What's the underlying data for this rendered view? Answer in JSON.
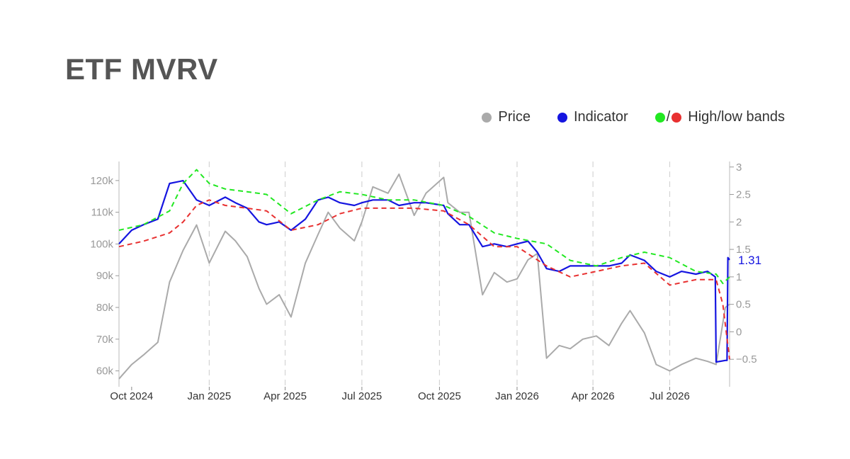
{
  "title": "ETF MVRV",
  "legend": {
    "price": {
      "label": "Price",
      "color": "#aaaaaa"
    },
    "indicator": {
      "label": "Indicator",
      "color": "#1515e0"
    },
    "bands": {
      "label": "High/low bands",
      "high_color": "#22e822",
      "low_color": "#e83030",
      "separator": "/"
    }
  },
  "chart_data": {
    "type": "line",
    "title": "ETF MVRV",
    "x_ticks": [
      "Oct 2024",
      "Jan 2025",
      "Apr 2025",
      "Jul 2025",
      "Oct 2025",
      "Jan 2026",
      "Apr 2026",
      "Jul 2026"
    ],
    "y_left": {
      "ticks": [
        "60k",
        "70k",
        "80k",
        "90k",
        "100k",
        "110k",
        "120k"
      ],
      "ylim": [
        55000,
        126000
      ]
    },
    "y_right": {
      "ticks": [
        "−0.5",
        "0",
        "0.5",
        "1",
        "1.5",
        "2",
        "2.5",
        "3"
      ],
      "ylim": [
        -1.0,
        3.1
      ]
    },
    "x_range": [
      "2024-09-16",
      "2026-09-10"
    ],
    "grid": {
      "vertical_dashed": true,
      "horizontal": false
    },
    "last_value_label": "1.31",
    "series": [
      {
        "name": "Price",
        "axis": "left",
        "color": "#aaaaaa",
        "style": "solid",
        "x": [
          "2024-09-16",
          "2024-10-01",
          "2024-10-15",
          "2024-11-01",
          "2024-11-15",
          "2024-12-01",
          "2024-12-17",
          "2025-01-01",
          "2025-01-20",
          "2025-02-01",
          "2025-02-15",
          "2025-03-01",
          "2025-03-10",
          "2025-03-25",
          "2025-04-08",
          "2025-04-25",
          "2025-05-10",
          "2025-05-22",
          "2025-06-05",
          "2025-06-22",
          "2025-07-01",
          "2025-07-14",
          "2025-08-01",
          "2025-08-14",
          "2025-09-01",
          "2025-09-15",
          "2025-10-06",
          "2025-10-11",
          "2025-10-25",
          "2025-11-05",
          "2025-11-21",
          "2025-12-05",
          "2025-12-20",
          "2026-01-01",
          "2026-01-14",
          "2026-01-25",
          "2026-02-05",
          "2026-02-20",
          "2026-03-05",
          "2026-03-20",
          "2026-04-05",
          "2026-04-20",
          "2026-05-05",
          "2026-05-15",
          "2026-06-01",
          "2026-06-15",
          "2026-07-01",
          "2026-07-15",
          "2026-08-01",
          "2026-08-15",
          "2026-08-25",
          "2026-09-05",
          "2026-09-10"
        ],
        "values": [
          57500,
          62000,
          65000,
          69000,
          88000,
          98000,
          106000,
          94000,
          104000,
          101000,
          96000,
          86000,
          81000,
          84000,
          77000,
          94000,
          103000,
          110000,
          105000,
          101000,
          107000,
          118000,
          116000,
          122000,
          109000,
          116000,
          121000,
          113000,
          110000,
          110000,
          84000,
          91000,
          88000,
          89000,
          95000,
          97000,
          64000,
          68000,
          67000,
          70000,
          71000,
          68000,
          75000,
          79000,
          72000,
          62000,
          60000,
          62000,
          64000,
          63000,
          62000,
          80000,
          81000
        ]
      },
      {
        "name": "Indicator",
        "axis": "right",
        "color": "#1515e0",
        "style": "solid",
        "x": [
          "2024-09-16",
          "2024-10-01",
          "2024-10-15",
          "2024-11-01",
          "2024-11-15",
          "2024-12-01",
          "2024-12-17",
          "2025-01-01",
          "2025-01-20",
          "2025-02-01",
          "2025-02-15",
          "2025-03-01",
          "2025-03-10",
          "2025-03-25",
          "2025-04-08",
          "2025-04-25",
          "2025-05-10",
          "2025-05-22",
          "2025-06-05",
          "2025-06-22",
          "2025-07-01",
          "2025-07-14",
          "2025-08-01",
          "2025-08-14",
          "2025-09-01",
          "2025-09-15",
          "2025-10-06",
          "2025-10-11",
          "2025-10-25",
          "2025-11-05",
          "2025-11-21",
          "2025-12-05",
          "2025-12-20",
          "2026-01-01",
          "2026-01-14",
          "2026-01-25",
          "2026-02-05",
          "2026-02-20",
          "2026-03-05",
          "2026-03-20",
          "2026-04-05",
          "2026-04-20",
          "2026-05-05",
          "2026-05-15",
          "2026-06-01",
          "2026-06-15",
          "2026-07-01",
          "2026-07-15",
          "2026-08-01",
          "2026-08-15",
          "2026-08-24",
          "2026-08-25",
          "2026-09-05",
          "2026-09-07",
          "2026-09-08",
          "2026-09-10"
        ],
        "values": [
          1.6,
          1.85,
          1.95,
          2.05,
          2.7,
          2.75,
          2.4,
          2.3,
          2.45,
          2.35,
          2.25,
          2.0,
          1.95,
          2.0,
          1.85,
          2.05,
          2.4,
          2.45,
          2.35,
          2.3,
          2.35,
          2.4,
          2.4,
          2.3,
          2.35,
          2.35,
          2.3,
          2.15,
          1.95,
          1.95,
          1.55,
          1.6,
          1.55,
          1.6,
          1.65,
          1.45,
          1.15,
          1.1,
          1.2,
          1.2,
          1.2,
          1.2,
          1.25,
          1.4,
          1.3,
          1.1,
          1.0,
          1.1,
          1.05,
          1.1,
          1.0,
          -0.55,
          -0.52,
          -0.52,
          1.35,
          1.31
        ]
      },
      {
        "name": "High band",
        "axis": "right",
        "color": "#22e822",
        "style": "dashed",
        "x": [
          "2024-09-16",
          "2024-10-15",
          "2024-11-15",
          "2024-12-01",
          "2024-12-17",
          "2025-01-01",
          "2025-01-20",
          "2025-02-15",
          "2025-03-10",
          "2025-04-08",
          "2025-05-10",
          "2025-06-05",
          "2025-07-01",
          "2025-08-01",
          "2025-09-01",
          "2025-10-06",
          "2025-11-05",
          "2025-12-05",
          "2026-01-01",
          "2026-02-05",
          "2026-03-05",
          "2026-04-05",
          "2026-05-05",
          "2026-06-01",
          "2026-07-01",
          "2026-08-01",
          "2026-08-25",
          "2026-09-02",
          "2026-09-10"
        ],
        "values": [
          1.85,
          1.95,
          2.2,
          2.7,
          2.95,
          2.7,
          2.6,
          2.55,
          2.5,
          2.15,
          2.4,
          2.55,
          2.5,
          2.4,
          2.4,
          2.3,
          2.1,
          1.8,
          1.7,
          1.6,
          1.3,
          1.2,
          1.35,
          1.45,
          1.35,
          1.1,
          1.05,
          0.88,
          1.0
        ]
      },
      {
        "name": "Low band",
        "axis": "right",
        "color": "#e83030",
        "style": "dashed",
        "x": [
          "2024-09-16",
          "2024-10-15",
          "2024-11-15",
          "2024-12-01",
          "2024-12-17",
          "2025-01-01",
          "2025-01-20",
          "2025-02-15",
          "2025-03-10",
          "2025-04-08",
          "2025-05-10",
          "2025-06-05",
          "2025-07-01",
          "2025-08-01",
          "2025-09-01",
          "2025-10-06",
          "2025-11-05",
          "2025-12-05",
          "2026-01-01",
          "2026-02-05",
          "2026-03-05",
          "2026-04-05",
          "2026-05-05",
          "2026-06-01",
          "2026-07-01",
          "2026-08-01",
          "2026-08-25",
          "2026-09-02",
          "2026-09-10"
        ],
        "values": [
          1.55,
          1.65,
          1.8,
          2.0,
          2.3,
          2.4,
          2.3,
          2.25,
          2.2,
          1.85,
          1.95,
          2.15,
          2.25,
          2.25,
          2.25,
          2.2,
          1.95,
          1.55,
          1.55,
          1.2,
          1.0,
          1.1,
          1.2,
          1.25,
          0.85,
          0.95,
          0.95,
          0.5,
          -0.5
        ]
      }
    ]
  }
}
